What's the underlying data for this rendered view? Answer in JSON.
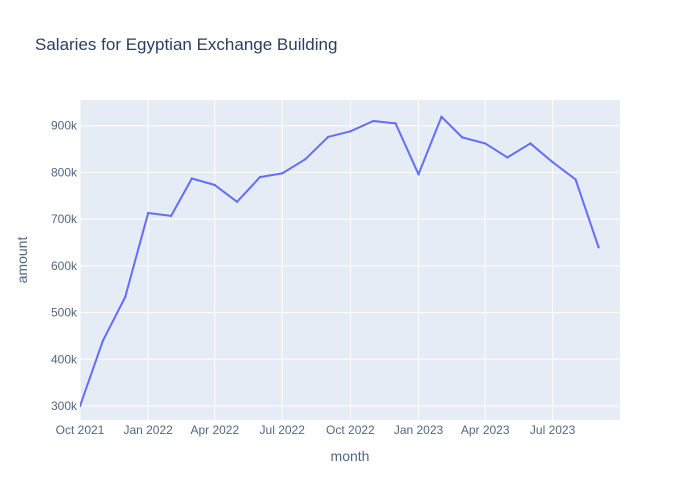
{
  "chart_data": {
    "type": "line",
    "title": "Salaries for Egyptian Exchange Building",
    "xlabel": "month",
    "ylabel": "amount",
    "xlim": [
      "2021-10-01",
      "2023-09-30"
    ],
    "ylim": [
      270000,
      955000
    ],
    "grid": true,
    "legend": "none",
    "x_ticks": [
      {
        "date": "2021-10-01",
        "label": "Oct 2021"
      },
      {
        "date": "2022-01-01",
        "label": "Jan 2022"
      },
      {
        "date": "2022-04-01",
        "label": "Apr 2022"
      },
      {
        "date": "2022-07-01",
        "label": "Jul 2022"
      },
      {
        "date": "2022-10-01",
        "label": "Oct 2022"
      },
      {
        "date": "2023-01-01",
        "label": "Jan 2023"
      },
      {
        "date": "2023-04-01",
        "label": "Apr 2023"
      },
      {
        "date": "2023-07-01",
        "label": "Jul 2023"
      }
    ],
    "y_ticks": [
      {
        "value": 300000,
        "label": "300k"
      },
      {
        "value": 400000,
        "label": "400k"
      },
      {
        "value": 500000,
        "label": "500k"
      },
      {
        "value": 600000,
        "label": "600k"
      },
      {
        "value": 700000,
        "label": "700k"
      },
      {
        "value": 800000,
        "label": "800k"
      },
      {
        "value": 900000,
        "label": "900k"
      }
    ],
    "series": [
      {
        "color": "#636efa",
        "x": [
          "2021-10-01",
          "2021-11-01",
          "2021-12-01",
          "2022-01-01",
          "2022-02-01",
          "2022-03-01",
          "2022-04-01",
          "2022-05-01",
          "2022-06-01",
          "2022-07-01",
          "2022-08-01",
          "2022-09-01",
          "2022-10-01",
          "2022-11-01",
          "2022-12-01",
          "2023-01-01",
          "2023-02-01",
          "2023-03-01",
          "2023-04-01",
          "2023-05-01",
          "2023-06-01",
          "2023-07-01",
          "2023-08-01",
          "2023-09-01"
        ],
        "y": [
          300000,
          440000,
          533000,
          713000,
          707000,
          787000,
          773000,
          737000,
          790000,
          798000,
          828000,
          876000,
          888000,
          910000,
          905000,
          796000,
          919000,
          875000,
          862000,
          832000,
          862000,
          822000,
          785000,
          640000
        ]
      }
    ]
  },
  "colors": {
    "plot_bg": "#e5ecf6",
    "grid": "#ffffff",
    "text": "#2a3f5f",
    "tick_text": "#506784"
  }
}
